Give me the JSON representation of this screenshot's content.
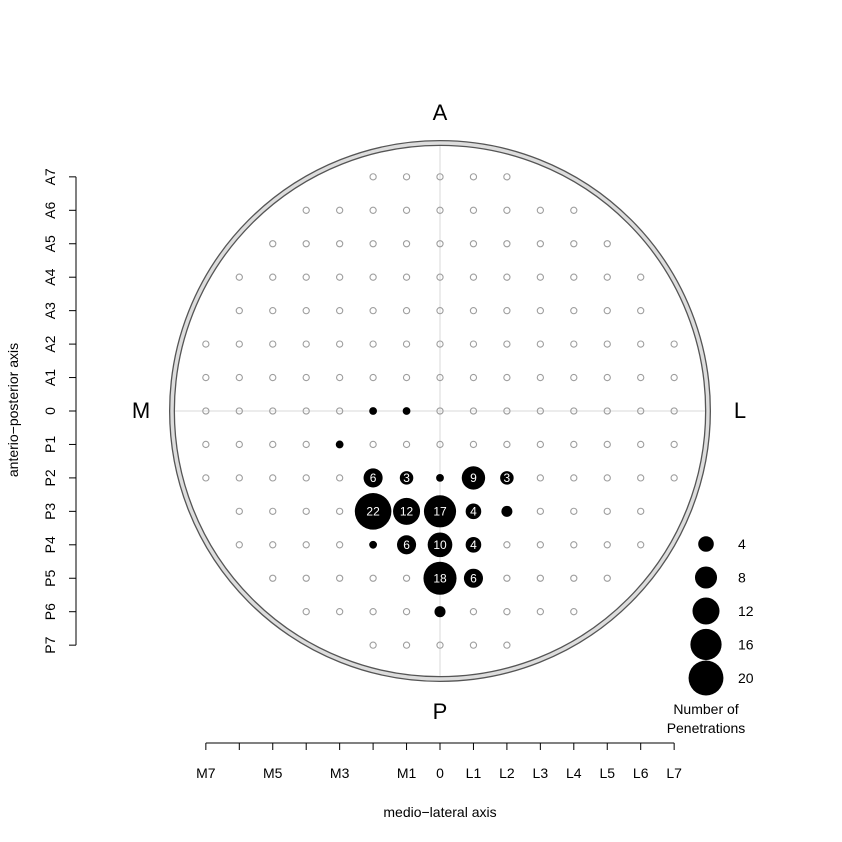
{
  "chart_data": {
    "type": "scatter",
    "title": "",
    "xlabel": "medio−lateral axis",
    "ylabel": "anterio−posterior axis",
    "direction_labels": {
      "top": "A",
      "bottom": "P",
      "left": "M",
      "right": "L"
    },
    "x_ticks": [
      {
        "value": -7,
        "label": "M7"
      },
      {
        "value": -6,
        "label": ""
      },
      {
        "value": -5,
        "label": "M5"
      },
      {
        "value": -4,
        "label": ""
      },
      {
        "value": -3,
        "label": "M3"
      },
      {
        "value": -2,
        "label": ""
      },
      {
        "value": -1,
        "label": "M1"
      },
      {
        "value": 0,
        "label": "0"
      },
      {
        "value": 1,
        "label": "L1"
      },
      {
        "value": 2,
        "label": "L2"
      },
      {
        "value": 3,
        "label": "L3"
      },
      {
        "value": 4,
        "label": "L4"
      },
      {
        "value": 5,
        "label": "L5"
      },
      {
        "value": 6,
        "label": "L6"
      },
      {
        "value": 7,
        "label": "L7"
      }
    ],
    "y_ticks": [
      {
        "value": 7,
        "label": "A7"
      },
      {
        "value": 6,
        "label": "A6"
      },
      {
        "value": 5,
        "label": "A5"
      },
      {
        "value": 4,
        "label": "A4"
      },
      {
        "value": 3,
        "label": "A3"
      },
      {
        "value": 2,
        "label": "A2"
      },
      {
        "value": 1,
        "label": "A1"
      },
      {
        "value": 0,
        "label": "0"
      },
      {
        "value": -1,
        "label": "P1"
      },
      {
        "value": -2,
        "label": "P2"
      },
      {
        "value": -3,
        "label": "P3"
      },
      {
        "value": -4,
        "label": "P4"
      },
      {
        "value": -5,
        "label": "P5"
      },
      {
        "value": -6,
        "label": "P6"
      },
      {
        "value": -7,
        "label": "P7"
      }
    ],
    "xlim": [
      -7,
      7
    ],
    "ylim": [
      -7,
      7
    ],
    "grid_rows": [
      {
        "y": 7,
        "x_min": -2,
        "x_max": 2
      },
      {
        "y": 6,
        "x_min": -4,
        "x_max": 4
      },
      {
        "y": 5,
        "x_min": -5,
        "x_max": 5
      },
      {
        "y": 4,
        "x_min": -6,
        "x_max": 6
      },
      {
        "y": 3,
        "x_min": -6,
        "x_max": 6
      },
      {
        "y": 2,
        "x_min": -7,
        "x_max": 7
      },
      {
        "y": 1,
        "x_min": -7,
        "x_max": 7
      },
      {
        "y": 0,
        "x_min": -7,
        "x_max": 7
      },
      {
        "y": -1,
        "x_min": -7,
        "x_max": 7
      },
      {
        "y": -2,
        "x_min": -7,
        "x_max": 7
      },
      {
        "y": -3,
        "x_min": -6,
        "x_max": 6
      },
      {
        "y": -4,
        "x_min": -6,
        "x_max": 6
      },
      {
        "y": -5,
        "x_min": -5,
        "x_max": 5
      },
      {
        "y": -6,
        "x_min": -4,
        "x_max": 4
      },
      {
        "y": -7,
        "x_min": -2,
        "x_max": 2
      }
    ],
    "penetrations": [
      {
        "x": -2,
        "y": 0,
        "count": 1,
        "label": ""
      },
      {
        "x": -1,
        "y": 0,
        "count": 1,
        "label": ""
      },
      {
        "x": -3,
        "y": -1,
        "count": 1,
        "label": ""
      },
      {
        "x": -2,
        "y": -2,
        "count": 6,
        "label": "6"
      },
      {
        "x": -1,
        "y": -2,
        "count": 3,
        "label": "3"
      },
      {
        "x": 0,
        "y": -2,
        "count": 1,
        "label": ""
      },
      {
        "x": 1,
        "y": -2,
        "count": 9,
        "label": "9"
      },
      {
        "x": 2,
        "y": -2,
        "count": 3,
        "label": "3"
      },
      {
        "x": -2,
        "y": -3,
        "count": 22,
        "label": "22"
      },
      {
        "x": -1,
        "y": -3,
        "count": 12,
        "label": "12"
      },
      {
        "x": 0,
        "y": -3,
        "count": 17,
        "label": "17"
      },
      {
        "x": 1,
        "y": -3,
        "count": 4,
        "label": "4"
      },
      {
        "x": 2,
        "y": -3,
        "count": 2,
        "label": ""
      },
      {
        "x": -2,
        "y": -4,
        "count": 1,
        "label": ""
      },
      {
        "x": -1,
        "y": -4,
        "count": 6,
        "label": "6"
      },
      {
        "x": 0,
        "y": -4,
        "count": 10,
        "label": "10"
      },
      {
        "x": 1,
        "y": -4,
        "count": 4,
        "label": "4"
      },
      {
        "x": 0,
        "y": -5,
        "count": 18,
        "label": "18"
      },
      {
        "x": 1,
        "y": -5,
        "count": 6,
        "label": "6"
      },
      {
        "x": 0,
        "y": -6,
        "count": 2,
        "label": ""
      }
    ],
    "legend": {
      "title": "Number of\nPenetrations",
      "title_lines": [
        "Number of",
        "Penetrations"
      ],
      "placement": "bottom-right",
      "entries": [
        {
          "count": 4,
          "label": "4"
        },
        {
          "count": 8,
          "label": "8"
        },
        {
          "count": 12,
          "label": "12"
        },
        {
          "count": 16,
          "label": "16"
        },
        {
          "count": 20,
          "label": "20"
        }
      ]
    },
    "colors": {
      "marker": "#000000",
      "empty_site": "#9e9e9e",
      "crosshair": "#d9d9d9",
      "chamber_ring": "#555555",
      "chamber_fill": "#dddddd",
      "dot_label": "#ffffff"
    }
  }
}
